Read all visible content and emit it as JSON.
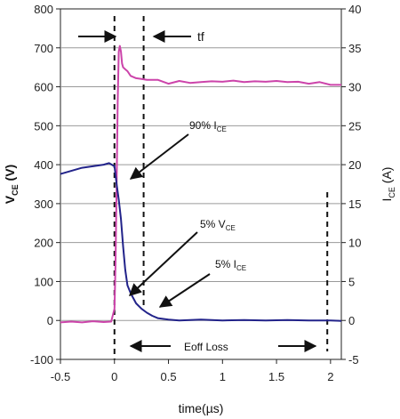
{
  "chart_data": {
    "type": "line",
    "title": "",
    "xlabel": "time(µs)",
    "ylabel_left": {
      "main": "V",
      "sub": "CE",
      "unit": " (V)"
    },
    "ylabel_right": {
      "main": "I",
      "sub": "CE",
      "unit": " (A)"
    },
    "xlim": [
      -0.5,
      2.1
    ],
    "ylim_left": [
      -100,
      800
    ],
    "ylim_right": [
      -5,
      40
    ],
    "x_ticks": [
      "-0.5",
      "0",
      "0.5",
      "1",
      "1.5",
      "2"
    ],
    "x_tick_values": [
      -0.5,
      0,
      0.5,
      1,
      1.5,
      2
    ],
    "y_left_ticks": [
      "-100",
      "0",
      "100",
      "200",
      "300",
      "400",
      "500",
      "600",
      "700",
      "800"
    ],
    "y_left_tick_values": [
      -100,
      0,
      100,
      200,
      300,
      400,
      500,
      600,
      700,
      800
    ],
    "y_right_ticks": [
      "-5",
      "0",
      "5",
      "10",
      "15",
      "20",
      "25",
      "30",
      "35",
      "40"
    ],
    "y_right_tick_values": [
      -5,
      0,
      5,
      10,
      15,
      20,
      25,
      30,
      35,
      40
    ],
    "grid": true,
    "series": [
      {
        "axis": "left",
        "color": "#cc44aa",
        "x": [
          -0.5,
          -0.4,
          -0.3,
          -0.2,
          -0.1,
          -0.03,
          0.0,
          0.01,
          0.02,
          0.03,
          0.04,
          0.05,
          0.06,
          0.07,
          0.08,
          0.1,
          0.12,
          0.15,
          0.2,
          0.25,
          0.3,
          0.4,
          0.5,
          0.6,
          0.7,
          0.8,
          0.9,
          1.0,
          1.1,
          1.2,
          1.3,
          1.4,
          1.5,
          1.6,
          1.7,
          1.8,
          1.9,
          2.0,
          2.1
        ],
        "y": [
          -5,
          -3,
          -5,
          -2,
          -4,
          -3,
          30,
          150,
          350,
          560,
          690,
          705,
          690,
          660,
          650,
          645,
          640,
          628,
          622,
          620,
          618,
          618,
          608,
          615,
          610,
          612,
          614,
          613,
          616,
          612,
          614,
          613,
          615,
          612,
          613,
          608,
          612,
          605,
          605
        ]
      },
      {
        "axis": "right",
        "color": "#22238a",
        "x": [
          -0.5,
          -0.4,
          -0.3,
          -0.2,
          -0.1,
          -0.05,
          0.0,
          0.02,
          0.04,
          0.06,
          0.08,
          0.1,
          0.12,
          0.15,
          0.2,
          0.25,
          0.3,
          0.35,
          0.4,
          0.5,
          0.6,
          0.8,
          1.0,
          1.2,
          1.4,
          1.6,
          1.8,
          2.0,
          2.1
        ],
        "y": [
          18.8,
          19.2,
          19.6,
          19.8,
          20.0,
          20.2,
          19.8,
          17.5,
          15.5,
          13.0,
          9.5,
          6.5,
          4.5,
          3.5,
          2.2,
          1.5,
          1.0,
          0.6,
          0.3,
          0.1,
          0.0,
          0.1,
          0.0,
          0.05,
          0.0,
          0.05,
          0.0,
          0.0,
          -0.05
        ]
      }
    ],
    "vlines": [
      0.0,
      0.27,
      1.97
    ],
    "annotations": [
      {
        "text": "tf"
      },
      {
        "main": "90% I",
        "sub": "CE"
      },
      {
        "main": "5% V",
        "sub": "CE"
      },
      {
        "main": "5% I",
        "sub": "CE"
      },
      {
        "text": "Eoff Loss"
      }
    ]
  }
}
